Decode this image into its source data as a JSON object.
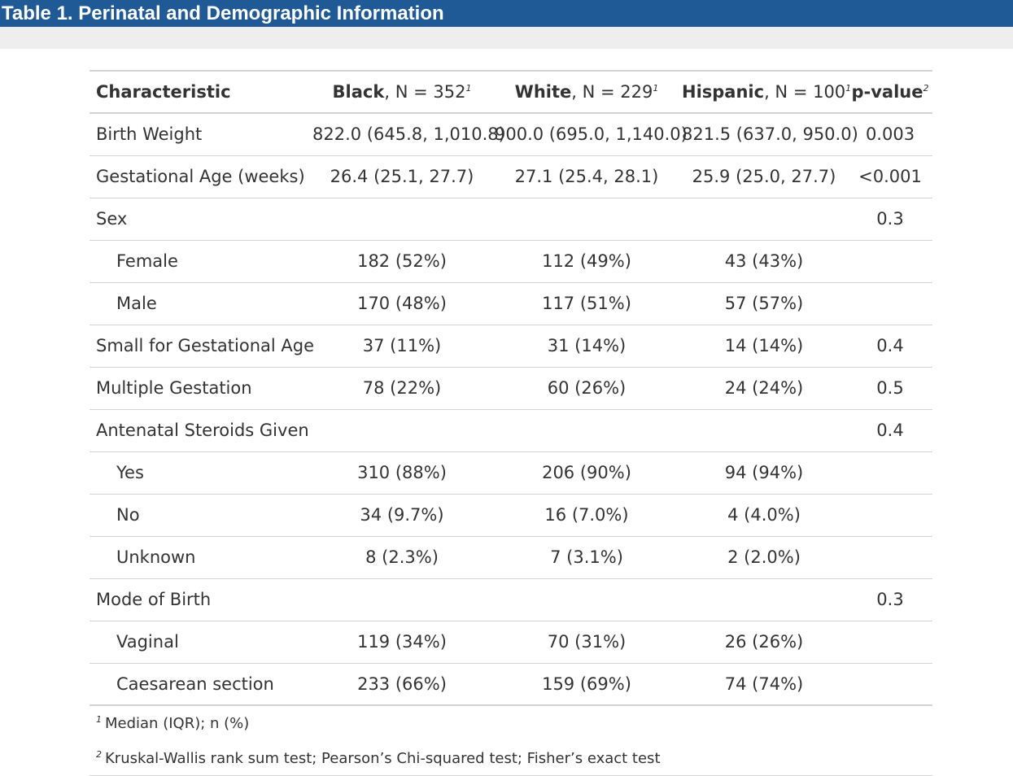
{
  "title": "Table 1. Perinatal and Demographic Information",
  "header": {
    "characteristic": "Characteristic",
    "groups": [
      {
        "name": "Black",
        "n_text": ", N = 352",
        "note": "1"
      },
      {
        "name": "White",
        "n_text": ", N = 229",
        "note": "1"
      },
      {
        "name": "Hispanic",
        "n_text": ", N = 100",
        "note": "1"
      }
    ],
    "pvalue": {
      "name": "p-value",
      "note": "2"
    }
  },
  "rows": [
    {
      "label": "Birth Weight",
      "indent": false,
      "black": "822.0 (645.8, 1,010.8)",
      "white": "900.0 (695.0, 1,140.0)",
      "hispanic": "821.5 (637.0, 950.0)",
      "p": "0.003"
    },
    {
      "label": "Gestational Age (weeks)",
      "indent": false,
      "black": "26.4 (25.1, 27.7)",
      "white": "27.1 (25.4, 28.1)",
      "hispanic": "25.9 (25.0, 27.7)",
      "p": "<0.001"
    },
    {
      "label": "Sex",
      "indent": false,
      "black": "",
      "white": "",
      "hispanic": "",
      "p": "0.3"
    },
    {
      "label": "Female",
      "indent": true,
      "black": "182 (52%)",
      "white": "112 (49%)",
      "hispanic": "43 (43%)",
      "p": ""
    },
    {
      "label": "Male",
      "indent": true,
      "black": "170 (48%)",
      "white": "117 (51%)",
      "hispanic": "57 (57%)",
      "p": ""
    },
    {
      "label": "Small for Gestational Age",
      "indent": false,
      "black": "37 (11%)",
      "white": "31 (14%)",
      "hispanic": "14 (14%)",
      "p": "0.4"
    },
    {
      "label": "Multiple Gestation",
      "indent": false,
      "black": "78 (22%)",
      "white": "60 (26%)",
      "hispanic": "24 (24%)",
      "p": "0.5"
    },
    {
      "label": "Antenatal Steroids Given",
      "indent": false,
      "black": "",
      "white": "",
      "hispanic": "",
      "p": "0.4"
    },
    {
      "label": "Yes",
      "indent": true,
      "black": "310 (88%)",
      "white": "206 (90%)",
      "hispanic": "94 (94%)",
      "p": ""
    },
    {
      "label": "No",
      "indent": true,
      "black": "34 (9.7%)",
      "white": "16 (7.0%)",
      "hispanic": "4 (4.0%)",
      "p": ""
    },
    {
      "label": "Unknown",
      "indent": true,
      "black": "8 (2.3%)",
      "white": "7 (3.1%)",
      "hispanic": "2 (2.0%)",
      "p": ""
    },
    {
      "label": "Mode of Birth",
      "indent": false,
      "black": "",
      "white": "",
      "hispanic": "",
      "p": "0.3"
    },
    {
      "label": "Vaginal",
      "indent": true,
      "black": "119 (34%)",
      "white": "70 (31%)",
      "hispanic": "26 (26%)",
      "p": ""
    },
    {
      "label": "Caesarean section",
      "indent": true,
      "black": "233 (66%)",
      "white": "159 (69%)",
      "hispanic": "74 (74%)",
      "p": ""
    }
  ],
  "footnotes": [
    {
      "mark": "1",
      "text": "Median (IQR); n (%)"
    },
    {
      "mark": "2",
      "text": "Kruskal-Wallis rank sum test; Pearson’s Chi-squared test; Fisher’s exact test"
    }
  ],
  "colors": {
    "title_bar": "#1f5a96",
    "title_text": "#ffffff",
    "band": "#eeeeee",
    "rule": "#d3d3d3",
    "text": "#333333"
  }
}
